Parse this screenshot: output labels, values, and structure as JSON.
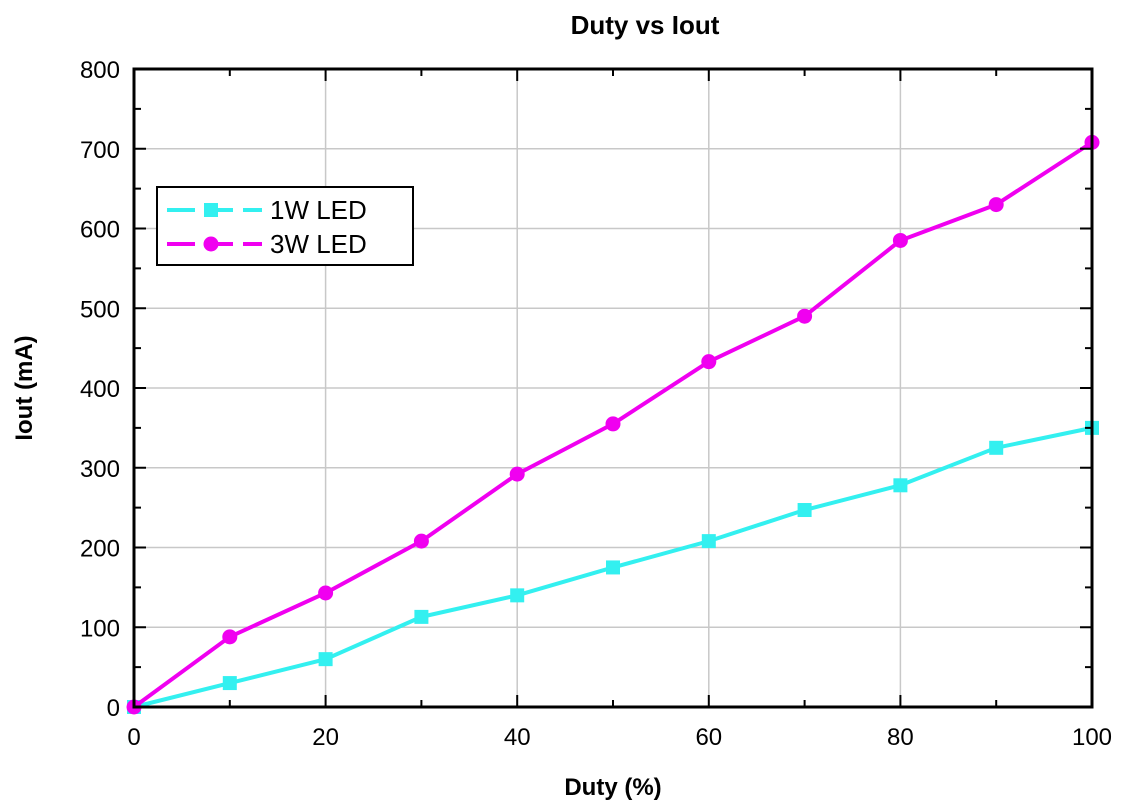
{
  "chart_data": {
    "type": "line",
    "title": "Duty vs Iout",
    "xlabel": "Duty (%)",
    "ylabel": "Iout (mA)",
    "xlim": [
      0,
      100
    ],
    "ylim": [
      0,
      800
    ],
    "xticks": [
      0,
      20,
      40,
      60,
      80,
      100
    ],
    "yticks": [
      0,
      100,
      200,
      300,
      400,
      500,
      600,
      700,
      800
    ],
    "grid": true,
    "legend_position": "top-left",
    "x": [
      0,
      10,
      20,
      30,
      40,
      50,
      60,
      70,
      80,
      90,
      100
    ],
    "series": [
      {
        "name": "1W LED",
        "color": "#33f0f0",
        "marker": "square",
        "values": [
          0,
          30,
          60,
          113,
          140,
          175,
          208,
          247,
          278,
          325,
          350
        ]
      },
      {
        "name": "3W LED",
        "color": "#f000f0",
        "marker": "circle",
        "values": [
          0,
          88,
          143,
          208,
          292,
          355,
          433,
          490,
          585,
          630,
          708
        ]
      }
    ]
  }
}
